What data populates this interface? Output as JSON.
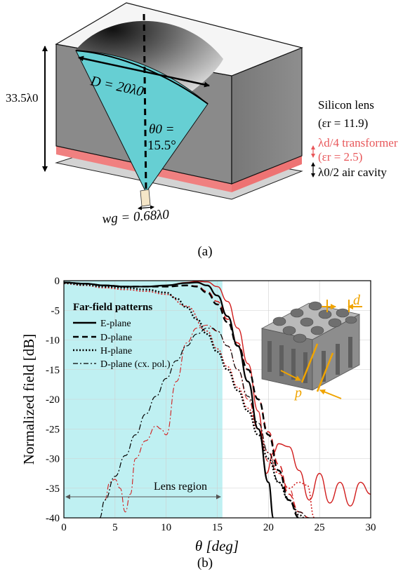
{
  "panel_a": {
    "caption": "(a)",
    "diameter_label": "D = 20λ0",
    "height_label": "33.5λ0",
    "angle_label_line1": "θ0 =",
    "angle_label_line2": "15.5°",
    "waveguide_label": "wg = 0.68λ0",
    "legend": {
      "lens_line1": "Silicon lens",
      "lens_line2": "(εr = 11.9)",
      "transformer_line1": "λd/4 transformer",
      "transformer_line2": "(εr = 2.5)",
      "cavity": "λ0/2 air cavity"
    },
    "colors": {
      "lens_cone": "#66cfd3",
      "block": "#8a8a8a",
      "transformer": "#f08080",
      "transformer_text": "#e8575a"
    }
  },
  "panel_b": {
    "caption": "(b)",
    "inset_labels": {
      "d": "d",
      "p": "p"
    },
    "region_label": "Lens region",
    "legend_title": "Far-field patterns",
    "colors": {
      "lens_region": "#bff0f2",
      "red": "#d11d1d",
      "black": "#000000",
      "inset_arrows": "#f0a400"
    }
  },
  "chart_data": {
    "type": "line",
    "xlabel": "θ [deg]",
    "ylabel": "Normalized field [dB]",
    "xlim": [
      0,
      30
    ],
    "ylim": [
      -40,
      0
    ],
    "xticks": [
      0,
      5,
      10,
      15,
      20,
      25,
      30
    ],
    "yticks": [
      0,
      -5,
      -10,
      -15,
      -20,
      -25,
      -30,
      -35,
      -40
    ],
    "grid": true,
    "legend_position": "top-left",
    "lens_region": [
      0,
      15.5
    ],
    "series": [
      {
        "name": "E-plane",
        "style": "solid",
        "color": "#000000",
        "x": [
          0,
          2,
          4,
          6,
          8,
          10,
          12,
          13,
          14,
          15,
          16,
          17,
          18,
          19,
          20,
          20.5
        ],
        "y": [
          -0.3,
          -0.5,
          -0.8,
          -1,
          -1,
          -0.8,
          -0.4,
          -0.3,
          -0.8,
          -2.5,
          -6,
          -11,
          -17,
          -25,
          -34,
          -40
        ]
      },
      {
        "name": "D-plane",
        "style": "dash",
        "color": "#000000",
        "x": [
          0,
          2,
          4,
          6,
          8,
          10,
          12,
          13,
          14,
          15,
          16,
          17,
          18,
          19,
          20,
          21,
          22,
          23
        ],
        "y": [
          -0.3,
          -0.5,
          -0.8,
          -1,
          -1,
          -1,
          -0.8,
          -1,
          -2,
          -4,
          -7,
          -11,
          -15,
          -20,
          -26,
          -32,
          -37,
          -40
        ]
      },
      {
        "name": "H-plane",
        "style": "dot",
        "color": "#000000",
        "x": [
          0,
          2,
          4,
          6,
          8,
          10,
          11,
          12,
          13,
          14,
          15,
          16,
          17,
          18,
          19,
          20,
          21,
          22,
          23,
          23.5
        ],
        "y": [
          -0.4,
          -0.7,
          -1,
          -1.2,
          -1.5,
          -2,
          -3,
          -4.5,
          -6.5,
          -9,
          -12,
          -15,
          -18.5,
          -22,
          -26,
          -30,
          -34,
          -37,
          -39.5,
          -40
        ]
      },
      {
        "name": "D-plane (cx. pol.)",
        "style": "dashdot",
        "color": "#000000",
        "x": [
          3.5,
          4,
          5,
          6,
          7,
          8,
          9,
          10,
          11,
          12,
          13,
          14,
          14.5,
          15,
          16,
          17,
          18,
          19,
          20,
          21,
          22,
          23,
          24
        ],
        "y": [
          -40,
          -37,
          -33,
          -29.5,
          -26,
          -22.5,
          -19.5,
          -16.5,
          -13.5,
          -11,
          -9,
          -8,
          -8,
          -8.5,
          -11,
          -15,
          -19.5,
          -24,
          -29,
          -34,
          -37,
          -39,
          -40
        ]
      },
      {
        "name": "",
        "style": "solid",
        "color": "#d11d1d",
        "x": [
          0,
          2,
          4,
          6,
          8,
          10,
          12,
          13,
          14,
          15,
          16,
          17,
          18,
          19,
          19.8,
          20.5,
          21,
          22,
          23,
          24,
          25,
          26,
          27,
          28,
          29,
          30
        ],
        "y": [
          -0.3,
          -0.5,
          -0.8,
          -1,
          -1,
          -0.8,
          -0.3,
          -0.1,
          -0.2,
          -1,
          -3.5,
          -8,
          -14,
          -22,
          -32.5,
          -29,
          -27.5,
          -28,
          -32,
          -37,
          -32.5,
          -37.5,
          -34,
          -38,
          -34,
          -36
        ]
      },
      {
        "name": "",
        "style": "dash",
        "color": "#d11d1d",
        "x": [
          0,
          2,
          4,
          6,
          8,
          10,
          12,
          13,
          14,
          15,
          16,
          17,
          18,
          19,
          20,
          21,
          22,
          23,
          24
        ],
        "y": [
          -0.3,
          -0.5,
          -0.8,
          -1,
          -1,
          -1,
          -0.8,
          -0.9,
          -1.8,
          -3.5,
          -6.5,
          -10.5,
          -15,
          -20,
          -25.5,
          -31,
          -36,
          -39,
          -40
        ]
      },
      {
        "name": "",
        "style": "dot",
        "color": "#d11d1d",
        "x": [
          0,
          2,
          4,
          6,
          8,
          10,
          12,
          14,
          15,
          16,
          17,
          18,
          19,
          20,
          21,
          22,
          23,
          23.8,
          24.5
        ],
        "y": [
          -0.5,
          -0.8,
          -1.2,
          -1.5,
          -1.8,
          -2.3,
          -4.3,
          -8.5,
          -11.5,
          -14.5,
          -18,
          -21.5,
          -25,
          -29,
          -32.5,
          -35,
          -34,
          -34.5,
          -40
        ]
      },
      {
        "name": "",
        "style": "dashdot",
        "color": "#d11d1d",
        "x": [
          4,
          4.5,
          5,
          5.5,
          6,
          6.5,
          7,
          8,
          9,
          9.5,
          10,
          11,
          12,
          13,
          14,
          15,
          16,
          17,
          18,
          19,
          20,
          21,
          22,
          23
        ],
        "y": [
          -37,
          -34,
          -33.5,
          -35,
          -39,
          -36,
          -30,
          -27,
          -24.5,
          -25,
          -26,
          -17,
          -10.5,
          -8,
          -7.5,
          -8.5,
          -11,
          -15,
          -20,
          -25,
          -30.5,
          -32.5,
          -35,
          -40
        ]
      }
    ]
  }
}
